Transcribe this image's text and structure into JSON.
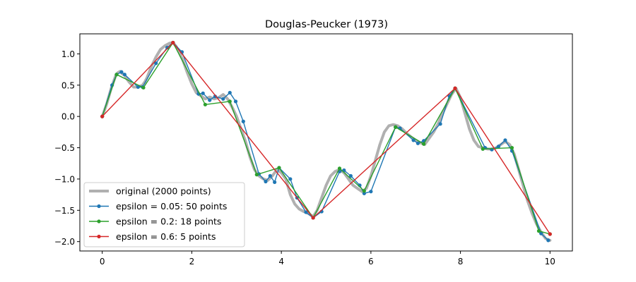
{
  "chart_data": {
    "type": "line",
    "title": "Douglas-Peucker (1973)",
    "xlabel": "",
    "ylabel": "",
    "xlim": [
      -0.5,
      10.5
    ],
    "ylim": [
      -2.15,
      1.32
    ],
    "xticks": [
      0,
      2,
      4,
      6,
      8,
      10
    ],
    "xtick_labels": [
      "0",
      "2",
      "4",
      "6",
      "8",
      "10"
    ],
    "yticks": [
      1.0,
      0.5,
      0.0,
      -0.5,
      -1.0,
      -1.5,
      -2.0
    ],
    "ytick_labels": [
      "1.0",
      "0.5",
      "0.0",
      "−0.5",
      "−1.0",
      "−1.5",
      "−2.0"
    ],
    "grid": false,
    "legend_position": "lower-left",
    "series": [
      {
        "name": "original (2000 points)",
        "color": "#b0b0b0",
        "marker": false,
        "x": [
          0,
          0.1,
          0.2,
          0.3,
          0.35,
          0.4,
          0.45,
          0.5,
          0.55,
          0.6,
          0.7,
          0.8,
          0.9,
          0.95,
          1.0,
          1.1,
          1.2,
          1.3,
          1.4,
          1.5,
          1.58,
          1.65,
          1.7,
          1.8,
          1.9,
          2.0,
          2.1,
          2.2,
          2.3,
          2.4,
          2.5,
          2.6,
          2.7,
          2.8,
          2.9,
          3.0,
          3.1,
          3.2,
          3.3,
          3.4,
          3.5,
          3.6,
          3.7,
          3.8,
          3.9,
          4.0,
          4.1,
          4.2,
          4.3,
          4.4,
          4.5,
          4.6,
          4.71,
          4.8,
          4.9,
          5.0,
          5.1,
          5.2,
          5.3,
          5.4,
          5.5,
          5.6,
          5.7,
          5.8,
          5.9,
          6.0,
          6.1,
          6.2,
          6.3,
          6.4,
          6.5,
          6.6,
          6.7,
          6.8,
          6.9,
          7.0,
          7.1,
          7.2,
          7.3,
          7.4,
          7.5,
          7.6,
          7.7,
          7.8,
          7.85,
          7.9,
          8.0,
          8.1,
          8.2,
          8.3,
          8.4,
          8.5,
          8.6,
          8.7,
          8.8,
          8.9,
          9.0,
          9.1,
          9.2,
          9.3,
          9.4,
          9.5,
          9.6,
          9.7,
          9.8,
          9.9,
          10.0
        ],
        "y": [
          0.0,
          0.2,
          0.45,
          0.65,
          0.7,
          0.72,
          0.68,
          0.66,
          0.6,
          0.55,
          0.47,
          0.47,
          0.5,
          0.55,
          0.62,
          0.8,
          0.95,
          1.07,
          1.13,
          1.17,
          1.18,
          1.12,
          1.05,
          0.9,
          0.7,
          0.52,
          0.38,
          0.33,
          0.28,
          0.31,
          0.28,
          0.3,
          0.35,
          0.28,
          0.15,
          0.0,
          -0.2,
          -0.4,
          -0.65,
          -0.85,
          -0.95,
          -1.0,
          -1.02,
          -0.95,
          -0.85,
          -0.9,
          -1.0,
          -1.25,
          -1.4,
          -1.48,
          -1.52,
          -1.55,
          -1.6,
          -1.5,
          -1.3,
          -1.1,
          -0.95,
          -0.88,
          -0.85,
          -0.9,
          -1.0,
          -1.1,
          -1.15,
          -1.2,
          -1.15,
          -0.95,
          -0.7,
          -0.45,
          -0.25,
          -0.15,
          -0.13,
          -0.15,
          -0.2,
          -0.27,
          -0.33,
          -0.38,
          -0.42,
          -0.45,
          -0.35,
          -0.25,
          -0.12,
          0.05,
          0.2,
          0.35,
          0.4,
          0.45,
          0.3,
          0.05,
          -0.2,
          -0.38,
          -0.48,
          -0.5,
          -0.52,
          -0.52,
          -0.5,
          -0.45,
          -0.4,
          -0.45,
          -0.6,
          -0.85,
          -1.1,
          -1.35,
          -1.55,
          -1.72,
          -1.85,
          -1.95,
          -1.98
        ]
      },
      {
        "name": "epsilon = 0.05: 50 points",
        "color": "#1f77b4",
        "marker": true,
        "x": [
          0,
          0.22,
          0.32,
          0.43,
          0.5,
          0.8,
          0.9,
          1.2,
          1.45,
          1.58,
          1.78,
          2.15,
          2.25,
          2.4,
          2.52,
          2.7,
          2.85,
          2.98,
          3.15,
          3.5,
          3.65,
          3.75,
          3.85,
          3.95,
          4.2,
          4.35,
          4.55,
          4.71,
          4.9,
          5.3,
          5.4,
          5.55,
          5.75,
          5.85,
          6.0,
          6.55,
          6.65,
          6.95,
          7.05,
          7.18,
          7.55,
          7.75,
          7.88,
          8.55,
          8.7,
          8.85,
          9.0,
          9.15,
          9.8,
          9.96
        ],
        "y": [
          0.0,
          0.5,
          0.67,
          0.71,
          0.67,
          0.47,
          0.47,
          0.85,
          1.1,
          1.18,
          1.03,
          0.36,
          0.37,
          0.26,
          0.32,
          0.28,
          0.38,
          0.24,
          -0.08,
          -0.92,
          -1.04,
          -0.95,
          -1.05,
          -0.82,
          -1.0,
          -1.3,
          -1.53,
          -1.62,
          -1.52,
          -0.88,
          -0.86,
          -0.95,
          -1.1,
          -1.23,
          -1.2,
          -0.17,
          -0.19,
          -0.38,
          -0.43,
          -0.39,
          -0.12,
          0.33,
          0.45,
          -0.5,
          -0.53,
          -0.48,
          -0.38,
          -0.55,
          -1.87,
          -1.98
        ]
      },
      {
        "name": "epsilon = 0.2: 18 points",
        "color": "#2ca02c",
        "marker": true,
        "x": [
          0,
          0.32,
          0.92,
          1.58,
          2.3,
          2.85,
          3.45,
          3.95,
          4.71,
          5.3,
          5.85,
          6.55,
          7.18,
          7.88,
          8.5,
          9.15,
          9.75,
          10.0
        ],
        "y": [
          0.0,
          0.67,
          0.46,
          1.18,
          0.19,
          0.24,
          -0.93,
          -0.82,
          -1.62,
          -0.83,
          -1.19,
          -0.17,
          -0.44,
          0.45,
          -0.52,
          -0.5,
          -1.83,
          -1.88
        ]
      },
      {
        "name": "epsilon = 0.6: 5 points",
        "color": "#d62728",
        "marker": true,
        "x": [
          0,
          1.58,
          4.71,
          7.88,
          10.0
        ],
        "y": [
          0.0,
          1.18,
          -1.62,
          0.45,
          -1.88
        ]
      }
    ]
  }
}
